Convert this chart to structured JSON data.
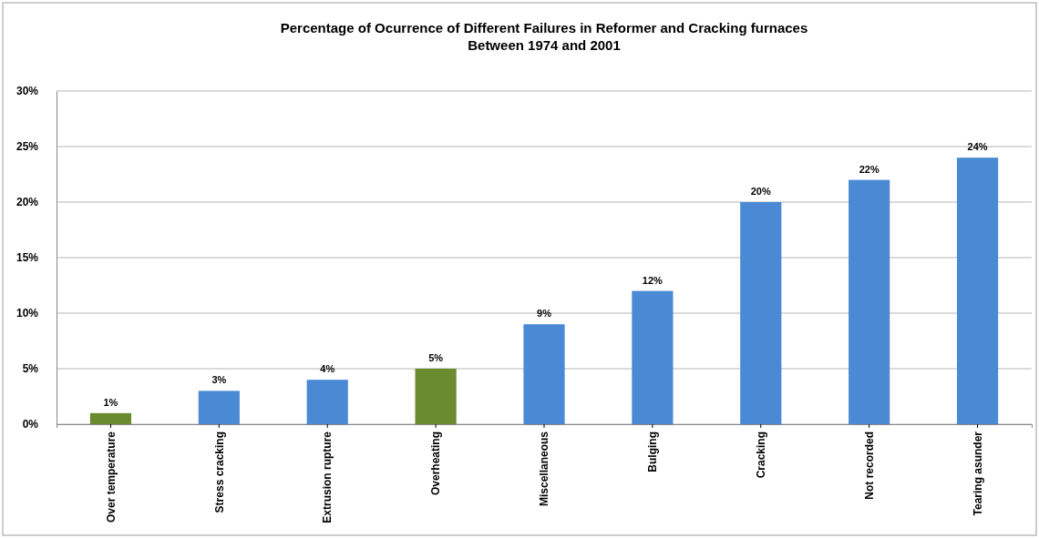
{
  "chart_data": {
    "type": "bar",
    "title": "Percentage of Ocurrence of Different Failures in Reformer and Cracking furnaces\nBetween 1974 and 2001",
    "categories": [
      "Over temperature",
      "Stress cracking",
      "Extrusion rupture",
      "Overheating",
      "Miscellaneous",
      "Bulging",
      "Cracking",
      "Not recorded",
      "Tearing asunder"
    ],
    "values": [
      1,
      3,
      4,
      5,
      9,
      12,
      20,
      22,
      24
    ],
    "colors": [
      "#6a8b2e",
      "#4a8ad4",
      "#4a8ad4",
      "#6a8b2e",
      "#4a8ad4",
      "#4a8ad4",
      "#4a8ad4",
      "#4a8ad4",
      "#4a8ad4"
    ],
    "value_labels": [
      "1%",
      "3%",
      "4%",
      "5%",
      "9%",
      "12%",
      "20%",
      "22%",
      "24%"
    ],
    "ylim": [
      0,
      30
    ],
    "yticks": [
      {
        "value": 0,
        "label": "0%"
      },
      {
        "value": 5,
        "label": "5%"
      },
      {
        "value": 10,
        "label": "10%"
      },
      {
        "value": 15,
        "label": "15%"
      },
      {
        "value": 20,
        "label": "20%"
      },
      {
        "value": 25,
        "label": "25%"
      },
      {
        "value": 30,
        "label": "30%"
      }
    ],
    "grid": "y"
  }
}
